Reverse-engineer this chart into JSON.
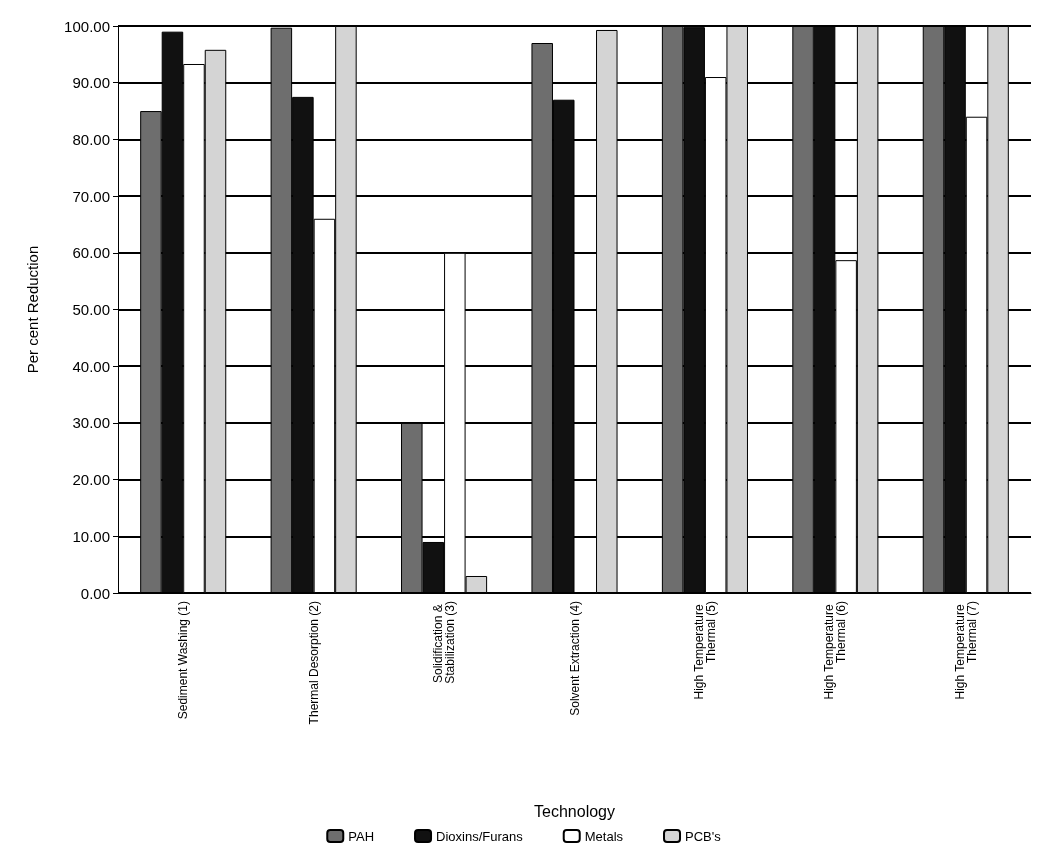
{
  "chart_data": {
    "type": "bar",
    "xlabel": "Technology",
    "ylabel": "Per cent Reduction",
    "categories": [
      "Sediment Washing (1)",
      "Thermal Desorption (2)",
      "Solidification & Stabilization (3)",
      "Solvent Extraction (4)",
      "High Temperature Thermal (5)",
      "High Temperature Thermal (6)",
      "High Temperature Thermal (7)"
    ],
    "series": [
      {
        "name": "PAH",
        "color": "#6e6e6e",
        "values": [
          85,
          99.7,
          30,
          97,
          100,
          100,
          100
        ]
      },
      {
        "name": "Dioxins/Furans",
        "color": "#111111",
        "values": [
          99,
          87.5,
          9,
          87,
          99.8,
          100,
          100
        ]
      },
      {
        "name": "Metals",
        "color": "#ffffff",
        "values": [
          93.3,
          66,
          60,
          null,
          91,
          58.7,
          84
        ]
      },
      {
        "name": "PCB's",
        "color": "#d4d4d4",
        "values": [
          95.8,
          100,
          3,
          99.3,
          100,
          100,
          100
        ]
      }
    ],
    "ylim": [
      0,
      100
    ],
    "yticks": [
      {
        "value": 0,
        "label": "0.00"
      },
      {
        "value": 10,
        "label": "10.00"
      },
      {
        "value": 20,
        "label": "20.00"
      },
      {
        "value": 30,
        "label": "30.00"
      },
      {
        "value": 40,
        "label": "40.00"
      },
      {
        "value": 50,
        "label": "50.00"
      },
      {
        "value": 60,
        "label": "60.00"
      },
      {
        "value": 70,
        "label": "70.00"
      },
      {
        "value": 80,
        "label": "80.00"
      },
      {
        "value": 90,
        "label": "90.00"
      },
      {
        "value": 100,
        "label": "100.00"
      }
    ],
    "grid": "y",
    "legend": "bottom"
  }
}
